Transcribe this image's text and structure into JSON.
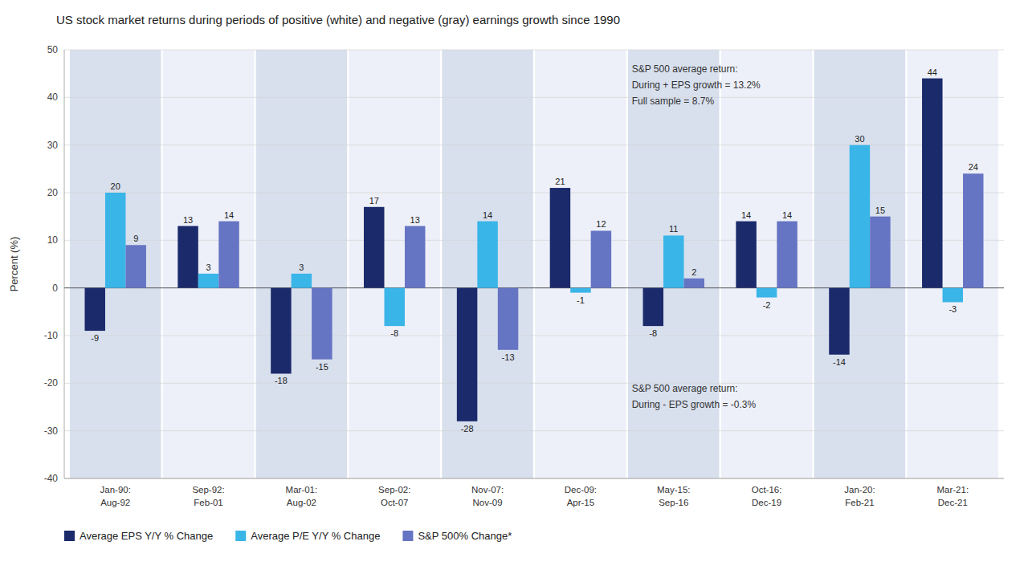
{
  "chart_data": {
    "type": "bar",
    "title": "US stock market returns during periods of positive (white) and negative (gray) earnings growth since 1990",
    "ylabel": "Percent (%)",
    "categories": [
      "Jan-90:\nAug-92",
      "Sep-92:\nFeb-01",
      "Mar-01:\nAug-02",
      "Sep-02:\nOct-07",
      "Nov-07:\nNov-09",
      "Dec-09:\nApr-15",
      "May-15:\nSep-16",
      "Oct-16:\nDec-19",
      "Jan-20:\nFeb-21",
      "Mar-21:\nDec-21"
    ],
    "series": [
      {
        "name": "Average EPS Y/Y % Change",
        "color": "#1b2a6b",
        "values": [
          -9,
          13,
          -18,
          17,
          -28,
          21,
          -8,
          14,
          -14,
          44
        ]
      },
      {
        "name": "Average P/E Y/Y % Change",
        "color": "#3ab5e8",
        "values": [
          20,
          3,
          3,
          -8,
          14,
          -1,
          11,
          -2,
          30,
          -3
        ]
      },
      {
        "name": "S&P 500% Change*",
        "color": "#6674c4",
        "values": [
          9,
          14,
          -15,
          13,
          -13,
          12,
          2,
          14,
          15,
          24
        ]
      }
    ],
    "shade_colors": [
      "#d8e0ee",
      "#edf0f8",
      "#d8e0ee",
      "#edf0f8",
      "#d8e0ee",
      "#edf0f8",
      "#d8e0ee",
      "#edf0f8",
      "#d8e0ee",
      "#edf0f8"
    ],
    "ylim": [
      -40,
      50
    ],
    "yticks": [
      -40,
      -30,
      -20,
      -10,
      0,
      10,
      20,
      30,
      40,
      50
    ],
    "grid": true,
    "legend": "bottom",
    "data_labels": true,
    "annotations": [
      "S&P 500 average return:\nDuring + EPS growth = 13.2%\nFull sample = 8.7%",
      "S&P 500 average return:\nDuring - EPS growth = -0.3%"
    ]
  }
}
